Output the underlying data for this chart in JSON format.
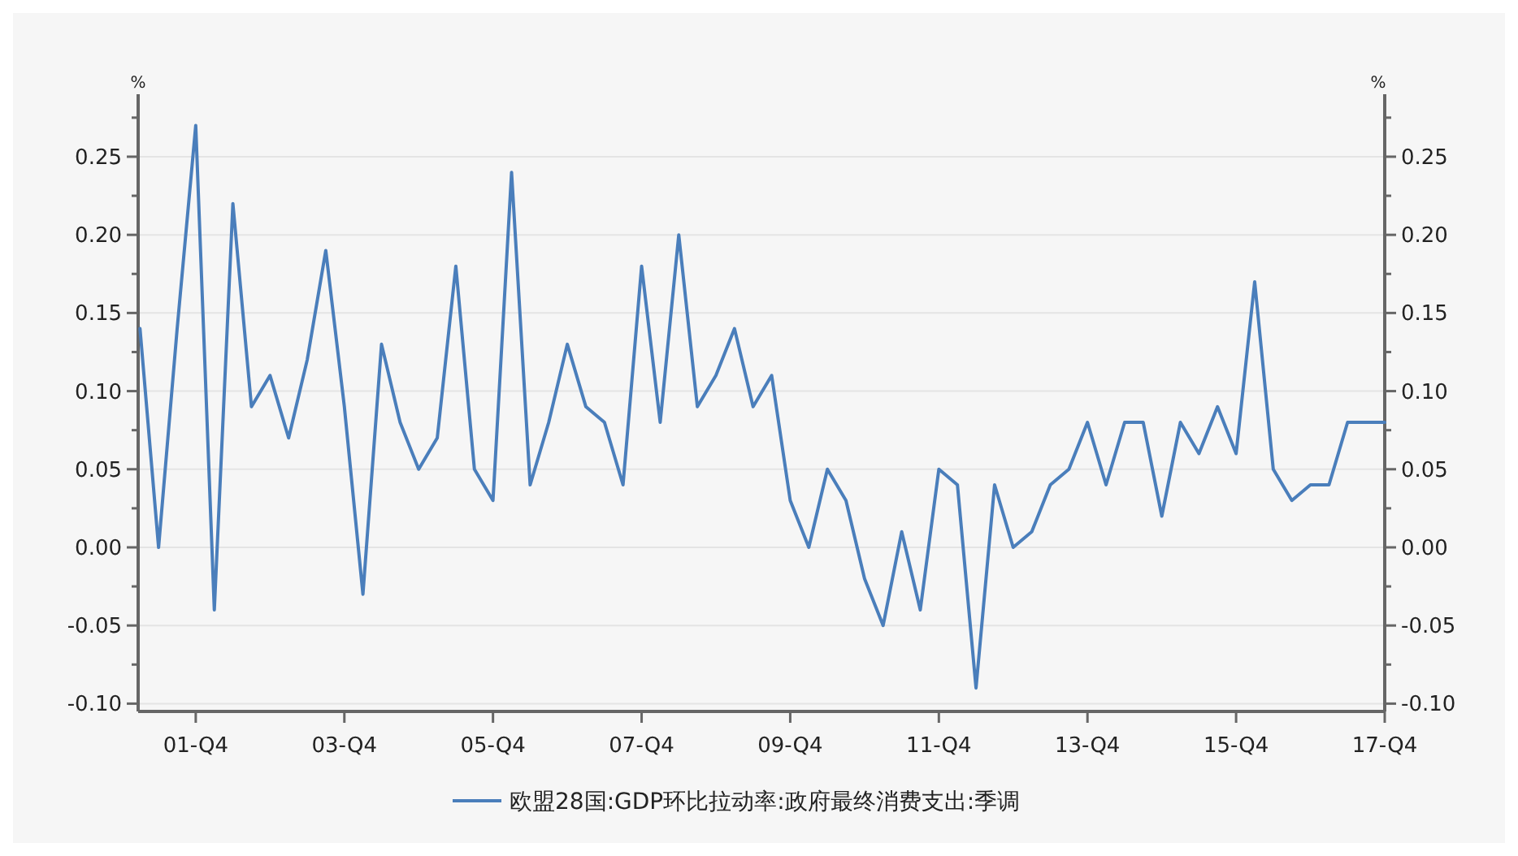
{
  "chart_data": {
    "type": "line",
    "categories": [
      null,
      null,
      null,
      "01-Q4",
      null,
      null,
      null,
      null,
      null,
      null,
      null,
      "03-Q4",
      null,
      null,
      null,
      null,
      null,
      null,
      null,
      "05-Q4",
      null,
      null,
      null,
      null,
      null,
      null,
      null,
      "07-Q4",
      null,
      null,
      null,
      null,
      null,
      null,
      null,
      "09-Q4",
      null,
      null,
      null,
      null,
      null,
      null,
      null,
      "11-Q4",
      null,
      null,
      null,
      null,
      null,
      null,
      null,
      "13-Q4",
      null,
      null,
      null,
      null,
      null,
      null,
      null,
      "15-Q4",
      null,
      null,
      null,
      null,
      null,
      null,
      null,
      "17-Q4"
    ],
    "series": [
      {
        "name": "欧盟28国:GDP环比拉动率:政府最终消费支出:季调",
        "color": "#4a7ebb",
        "values": [
          0.14,
          0.0,
          0.14,
          0.27,
          -0.04,
          0.22,
          0.09,
          0.11,
          0.07,
          0.12,
          0.19,
          0.09,
          -0.03,
          0.13,
          0.08,
          0.05,
          0.07,
          0.18,
          0.05,
          0.03,
          0.24,
          0.04,
          0.08,
          0.13,
          0.09,
          0.08,
          0.04,
          0.18,
          0.08,
          0.2,
          0.09,
          0.11,
          0.14,
          0.09,
          0.11,
          0.03,
          0.0,
          0.05,
          0.03,
          -0.02,
          -0.05,
          0.01,
          -0.04,
          0.05,
          0.04,
          -0.09,
          0.04,
          0.0,
          0.01,
          0.04,
          0.05,
          0.08,
          0.04,
          0.08,
          0.08,
          0.02,
          0.08,
          0.06,
          0.09,
          0.06,
          0.17,
          0.05,
          0.03,
          0.04,
          0.04,
          0.08,
          0.08,
          0.08
        ]
      }
    ],
    "ylabel": "%",
    "y2label": "%",
    "ylim": [
      -0.105,
      0.29
    ],
    "yticks": [
      {
        "value": -0.1,
        "label": "-0.10"
      },
      {
        "value": -0.075,
        "label": null
      },
      {
        "value": -0.05,
        "label": "-0.05"
      },
      {
        "value": -0.025,
        "label": null
      },
      {
        "value": 0,
        "label": "0.00"
      },
      {
        "value": 0.025,
        "label": null
      },
      {
        "value": 0.05,
        "label": "0.05"
      },
      {
        "value": 0.075,
        "label": null
      },
      {
        "value": 0.1,
        "label": "0.10"
      },
      {
        "value": 0.125,
        "label": null
      },
      {
        "value": 0.15,
        "label": "0.15"
      },
      {
        "value": 0.175,
        "label": null
      },
      {
        "value": 0.2,
        "label": "0.20"
      },
      {
        "value": 0.225,
        "label": null
      },
      {
        "value": 0.25,
        "label": "0.25"
      },
      {
        "value": 0.275,
        "label": null
      }
    ],
    "y2lim": [
      -0.105,
      0.29
    ],
    "y2ticks": [
      {
        "value": -0.1,
        "label": "-0.10"
      },
      {
        "value": -0.075,
        "label": null
      },
      {
        "value": -0.05,
        "label": "-0.05"
      },
      {
        "value": -0.025,
        "label": null
      },
      {
        "value": 0,
        "label": "0.00"
      },
      {
        "value": 0.025,
        "label": null
      },
      {
        "value": 0.05,
        "label": "0.05"
      },
      {
        "value": 0.075,
        "label": null
      },
      {
        "value": 0.1,
        "label": "0.10"
      },
      {
        "value": 0.125,
        "label": null
      },
      {
        "value": 0.15,
        "label": "0.15"
      },
      {
        "value": 0.175,
        "label": null
      },
      {
        "value": 0.2,
        "label": "0.20"
      },
      {
        "value": 0.225,
        "label": null
      },
      {
        "value": 0.25,
        "label": "0.25"
      },
      {
        "value": 0.275,
        "label": null
      }
    ],
    "grid": "y",
    "legend": "bottom",
    "marker": "none",
    "line_style": "solid"
  }
}
